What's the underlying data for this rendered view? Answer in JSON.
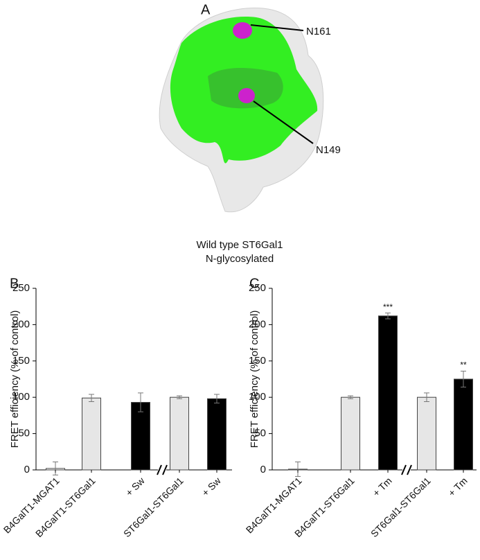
{
  "panel_a": {
    "label": "A",
    "site_labels": [
      "N161",
      "N149"
    ],
    "caption": [
      "Wild type ST6Gal1",
      "N-glycosylated"
    ]
  },
  "chart_data": [
    {
      "type": "bar",
      "panel": "B",
      "y_label": "FRET efficiency (% of control)",
      "categories": [
        "B4GalT1-MGAT1",
        "B4GalT1-ST6Gal1",
        "+ Sw",
        "ST6Gal1-ST6Gal1",
        "+ Sw"
      ],
      "values": [
        2,
        99,
        93,
        100,
        98
      ],
      "errors": [
        9,
        5,
        13,
        2,
        6
      ],
      "colors": [
        "#ffffff",
        "#e6e6e6",
        "#000000",
        "#e6e6e6",
        "#000000"
      ],
      "ylim": [
        0,
        250
      ],
      "yticks": [
        0,
        50,
        100,
        150,
        200,
        250
      ]
    },
    {
      "type": "bar",
      "panel": "C",
      "y_label": "FRET efficiency (% of control)",
      "categories": [
        "B4GalT1-MGAT1",
        "B4GalT1-ST6Gal1",
        "+ Tm",
        "ST6Gal1-ST6Gal1",
        "+ Tm"
      ],
      "values": [
        1,
        100,
        212,
        100,
        125
      ],
      "errors": [
        10,
        2,
        4,
        6,
        11
      ],
      "significance": [
        null,
        null,
        "***",
        null,
        "**"
      ],
      "colors": [
        "#ffffff",
        "#e6e6e6",
        "#000000",
        "#e6e6e6",
        "#000000"
      ],
      "ylim": [
        0,
        250
      ],
      "yticks": [
        0,
        50,
        100,
        150,
        200,
        250
      ]
    }
  ]
}
